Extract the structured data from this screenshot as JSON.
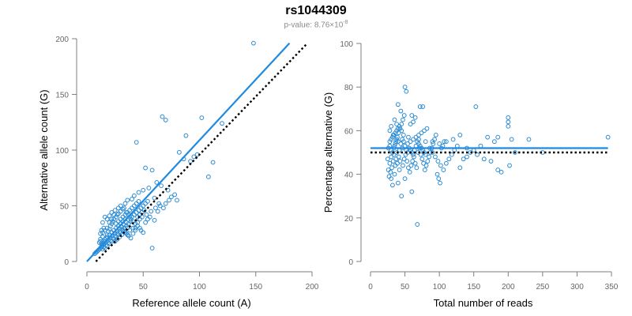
{
  "figure": {
    "title": "rs1044309",
    "subtitle_prefix": "p-value: 8.76×10",
    "subtitle_exponent": "-8"
  },
  "colors": {
    "points": "#2b8bd3",
    "fit_line": "#1f8ae0",
    "reference_line": "#000000",
    "axis": "#7f7f7f"
  },
  "chart_data": [
    {
      "type": "scatter",
      "xlabel": "Reference allele count (A)",
      "ylabel": "Alternative allele count (G)",
      "xlim": [
        0,
        200
      ],
      "ylim": [
        0,
        200
      ],
      "xticks": [
        0,
        50,
        100,
        150,
        200
      ],
      "yticks": [
        0,
        50,
        100,
        150,
        200
      ],
      "lines": [
        {
          "style": "solid",
          "color": "#1f8ae0",
          "x": [
            0,
            180
          ],
          "y": [
            0,
            196
          ]
        },
        {
          "style": "dotted",
          "color": "#000000",
          "x": [
            8,
            195
          ],
          "y": [
            0,
            195
          ]
        }
      ],
      "points": [
        [
          148,
          196
        ],
        [
          67,
          130
        ],
        [
          70,
          127
        ],
        [
          102,
          129
        ],
        [
          120,
          124
        ],
        [
          88,
          113
        ],
        [
          44,
          107
        ],
        [
          98,
          96
        ],
        [
          92,
          90
        ],
        [
          82,
          98
        ],
        [
          52,
          84
        ],
        [
          112,
          89
        ],
        [
          86,
          92
        ],
        [
          95,
          94
        ],
        [
          108,
          76
        ],
        [
          58,
          82
        ],
        [
          62,
          71
        ],
        [
          66,
          68
        ],
        [
          72,
          64
        ],
        [
          78,
          60
        ],
        [
          55,
          66
        ],
        [
          50,
          64
        ],
        [
          46,
          62
        ],
        [
          42,
          59
        ],
        [
          60,
          57
        ],
        [
          80,
          55
        ],
        [
          40,
          56
        ],
        [
          36,
          55
        ],
        [
          34,
          52
        ],
        [
          30,
          50
        ],
        [
          28,
          48
        ],
        [
          25,
          46
        ],
        [
          22,
          44
        ],
        [
          20,
          41
        ],
        [
          18,
          38
        ],
        [
          16,
          40
        ],
        [
          14,
          35
        ],
        [
          15,
          30
        ],
        [
          13,
          28
        ],
        [
          12,
          25
        ],
        [
          14,
          22
        ],
        [
          12,
          20
        ],
        [
          11,
          17
        ],
        [
          13,
          14
        ],
        [
          12,
          12
        ],
        [
          14,
          11
        ],
        [
          15,
          15
        ],
        [
          16,
          18
        ],
        [
          17,
          21
        ],
        [
          18,
          24
        ],
        [
          19,
          27
        ],
        [
          20,
          29
        ],
        [
          21,
          32
        ],
        [
          22,
          34
        ],
        [
          23,
          36
        ],
        [
          24,
          38
        ],
        [
          26,
          40
        ],
        [
          27,
          42
        ],
        [
          28,
          43
        ],
        [
          30,
          45
        ],
        [
          32,
          47
        ],
        [
          33,
          48
        ],
        [
          35,
          44
        ],
        [
          37,
          42
        ],
        [
          38,
          40
        ],
        [
          39,
          38
        ],
        [
          41,
          36
        ],
        [
          43,
          34
        ],
        [
          45,
          32
        ],
        [
          47,
          30
        ],
        [
          48,
          28
        ],
        [
          50,
          26
        ],
        [
          52,
          35
        ],
        [
          54,
          38
        ],
        [
          56,
          40
        ],
        [
          58,
          12
        ],
        [
          60,
          37
        ],
        [
          63,
          45
        ],
        [
          65,
          50
        ],
        [
          68,
          48
        ],
        [
          70,
          52
        ],
        [
          73,
          55
        ],
        [
          75,
          58
        ],
        [
          35,
          35
        ],
        [
          33,
          33
        ],
        [
          31,
          31
        ],
        [
          29,
          29
        ],
        [
          27,
          27
        ],
        [
          25,
          25
        ],
        [
          23,
          23
        ],
        [
          21,
          21
        ],
        [
          19,
          19
        ],
        [
          17,
          17
        ],
        [
          15,
          16
        ],
        [
          13,
          13
        ],
        [
          11,
          11
        ],
        [
          10,
          10
        ],
        [
          9,
          9
        ],
        [
          8,
          8
        ],
        [
          7,
          7
        ],
        [
          40,
          40
        ],
        [
          42,
          42
        ],
        [
          44,
          44
        ],
        [
          46,
          46
        ],
        [
          48,
          48
        ],
        [
          50,
          50
        ],
        [
          52,
          52
        ],
        [
          54,
          54
        ],
        [
          26,
          30
        ],
        [
          28,
          32
        ],
        [
          30,
          34
        ],
        [
          32,
          36
        ],
        [
          34,
          38
        ],
        [
          36,
          30
        ],
        [
          38,
          28
        ],
        [
          24,
          20
        ],
        [
          26,
          22
        ],
        [
          28,
          24
        ],
        [
          30,
          26
        ],
        [
          32,
          28
        ],
        [
          34,
          26
        ],
        [
          36,
          24
        ],
        [
          20,
          16
        ],
        [
          22,
          18
        ],
        [
          18,
          14
        ],
        [
          16,
          12
        ],
        [
          14,
          16
        ],
        [
          16,
          20
        ],
        [
          18,
          22
        ],
        [
          20,
          24
        ],
        [
          22,
          26
        ],
        [
          24,
          28
        ],
        [
          26,
          34
        ],
        [
          28,
          36
        ],
        [
          30,
          38
        ],
        [
          32,
          40
        ],
        [
          34,
          42
        ],
        [
          36,
          44
        ],
        [
          38,
          46
        ],
        [
          40,
          48
        ],
        [
          42,
          50
        ],
        [
          44,
          52
        ],
        [
          46,
          54
        ],
        [
          25,
          18
        ],
        [
          27,
          20
        ],
        [
          29,
          22
        ],
        [
          31,
          24
        ],
        [
          33,
          30
        ],
        [
          35,
          32
        ],
        [
          37,
          34
        ],
        [
          39,
          36
        ],
        [
          41,
          30
        ],
        [
          43,
          28
        ],
        [
          45,
          40
        ],
        [
          47,
          42
        ],
        [
          49,
          44
        ],
        [
          51,
          46
        ],
        [
          20,
          35
        ],
        [
          22,
          38
        ],
        [
          24,
          42
        ],
        [
          18,
          30
        ],
        [
          16,
          28
        ],
        [
          14,
          26
        ],
        [
          12,
          18
        ],
        [
          13,
          16
        ],
        [
          15,
          13
        ],
        [
          17,
          15
        ],
        [
          19,
          17
        ],
        [
          21,
          19
        ],
        [
          23,
          21
        ],
        [
          25,
          23
        ],
        [
          27,
          25
        ],
        [
          29,
          27
        ],
        [
          31,
          29
        ],
        [
          33,
          27
        ],
        [
          35,
          25
        ],
        [
          37,
          23
        ],
        [
          39,
          21
        ],
        [
          41,
          25
        ],
        [
          43,
          30
        ],
        [
          45,
          35
        ],
        [
          47,
          38
        ],
        [
          49,
          40
        ],
        [
          53,
          42
        ],
        [
          57,
          45
        ],
        [
          61,
          48
        ],
        [
          64,
          52
        ]
      ]
    },
    {
      "type": "scatter",
      "xlabel": "Total number of reads",
      "ylabel": "Percentage alternative (G)",
      "xlim": [
        0,
        350
      ],
      "ylim": [
        0,
        100
      ],
      "xticks": [
        0,
        50,
        100,
        150,
        200,
        250,
        300,
        350
      ],
      "yticks": [
        0,
        20,
        40,
        60,
        80,
        100
      ],
      "lines": [
        {
          "style": "solid",
          "color": "#1f8ae0",
          "x": [
            0,
            345
          ],
          "y": [
            52,
            52
          ]
        },
        {
          "style": "dotted",
          "color": "#000000",
          "x": [
            0,
            345
          ],
          "y": [
            50,
            50
          ]
        }
      ],
      "points": [
        [
          50,
          80
        ],
        [
          52,
          78
        ],
        [
          72,
          71
        ],
        [
          76,
          71
        ],
        [
          153,
          71
        ],
        [
          40,
          72
        ],
        [
          44,
          69
        ],
        [
          60,
          67
        ],
        [
          65,
          66
        ],
        [
          58,
          63
        ],
        [
          62,
          64
        ],
        [
          35,
          65
        ],
        [
          38,
          63
        ],
        [
          30,
          62
        ],
        [
          28,
          60
        ],
        [
          33,
          58
        ],
        [
          45,
          60
        ],
        [
          48,
          58
        ],
        [
          55,
          57
        ],
        [
          70,
          56
        ],
        [
          80,
          55
        ],
        [
          90,
          55
        ],
        [
          100,
          54
        ],
        [
          110,
          55
        ],
        [
          120,
          56
        ],
        [
          130,
          58
        ],
        [
          140,
          52
        ],
        [
          150,
          51
        ],
        [
          160,
          53
        ],
        [
          170,
          57
        ],
        [
          180,
          55
        ],
        [
          185,
          57
        ],
        [
          200,
          66
        ],
        [
          200,
          64
        ],
        [
          200,
          62
        ],
        [
          205,
          56
        ],
        [
          210,
          50
        ],
        [
          230,
          56
        ],
        [
          250,
          50
        ],
        [
          345,
          57
        ],
        [
          68,
          17
        ],
        [
          45,
          30
        ],
        [
          60,
          32
        ],
        [
          32,
          35
        ],
        [
          40,
          36
        ],
        [
          50,
          38
        ],
        [
          30,
          38
        ],
        [
          35,
          40
        ],
        [
          42,
          42
        ],
        [
          36,
          44
        ],
        [
          28,
          45
        ],
        [
          25,
          47
        ],
        [
          30,
          48
        ],
        [
          34,
          49
        ],
        [
          38,
          50
        ],
        [
          42,
          51
        ],
        [
          46,
          52
        ],
        [
          50,
          53
        ],
        [
          54,
          54
        ],
        [
          58,
          55
        ],
        [
          62,
          56
        ],
        [
          66,
          57
        ],
        [
          70,
          58
        ],
        [
          74,
          59
        ],
        [
          78,
          60
        ],
        [
          82,
          61
        ],
        [
          86,
          52
        ],
        [
          90,
          50
        ],
        [
          94,
          48
        ],
        [
          98,
          46
        ],
        [
          102,
          44
        ],
        [
          106,
          42
        ],
        [
          110,
          45
        ],
        [
          114,
          47
        ],
        [
          118,
          49
        ],
        [
          122,
          51
        ],
        [
          126,
          53
        ],
        [
          130,
          43
        ],
        [
          135,
          47
        ],
        [
          140,
          48
        ],
        [
          145,
          50
        ],
        [
          155,
          49
        ],
        [
          165,
          47
        ],
        [
          175,
          46
        ],
        [
          185,
          42
        ],
        [
          190,
          41
        ],
        [
          202,
          44
        ],
        [
          26,
          42
        ],
        [
          27,
          39
        ],
        [
          29,
          41
        ],
        [
          31,
          43
        ],
        [
          33,
          46
        ],
        [
          37,
          47
        ],
        [
          39,
          45
        ],
        [
          41,
          48
        ],
        [
          43,
          46
        ],
        [
          47,
          44
        ],
        [
          49,
          47
        ],
        [
          51,
          49
        ],
        [
          53,
          46
        ],
        [
          55,
          43
        ],
        [
          57,
          41
        ],
        [
          59,
          44
        ],
        [
          61,
          46
        ],
        [
          63,
          48
        ],
        [
          65,
          45
        ],
        [
          67,
          43
        ],
        [
          69,
          50
        ],
        [
          71,
          52
        ],
        [
          73,
          49
        ],
        [
          75,
          47
        ],
        [
          77,
          45
        ],
        [
          79,
          42
        ],
        [
          81,
          44
        ],
        [
          83,
          46
        ],
        [
          85,
          48
        ],
        [
          87,
          50
        ],
        [
          89,
          52
        ],
        [
          91,
          54
        ],
        [
          93,
          56
        ],
        [
          95,
          58
        ],
        [
          97,
          40
        ],
        [
          99,
          38
        ],
        [
          101,
          36
        ],
        [
          103,
          52
        ],
        [
          105,
          53
        ],
        [
          107,
          55
        ],
        [
          35,
          53
        ],
        [
          37,
          55
        ],
        [
          39,
          57
        ],
        [
          41,
          59
        ],
        [
          43,
          61
        ],
        [
          45,
          63
        ],
        [
          47,
          65
        ],
        [
          49,
          67
        ],
        [
          28,
          55
        ],
        [
          30,
          56
        ],
        [
          32,
          57
        ],
        [
          34,
          58
        ],
        [
          36,
          59
        ],
        [
          38,
          60
        ],
        [
          40,
          61
        ],
        [
          42,
          62
        ],
        [
          26,
          52
        ],
        [
          28,
          53
        ],
        [
          30,
          51
        ],
        [
          32,
          50
        ],
        [
          34,
          52
        ],
        [
          36,
          54
        ],
        [
          38,
          56
        ],
        [
          40,
          55
        ],
        [
          44,
          54
        ],
        [
          46,
          56
        ],
        [
          48,
          55
        ],
        [
          52,
          51
        ],
        [
          54,
          50
        ],
        [
          56,
          52
        ],
        [
          58,
          51
        ],
        [
          60,
          50
        ],
        [
          62,
          49
        ],
        [
          64,
          51
        ],
        [
          66,
          53
        ],
        [
          68,
          55
        ],
        [
          70,
          54
        ],
        [
          72,
          53
        ],
        [
          74,
          52
        ],
        [
          76,
          51
        ],
        [
          78,
          50
        ],
        [
          80,
          49
        ]
      ]
    }
  ]
}
